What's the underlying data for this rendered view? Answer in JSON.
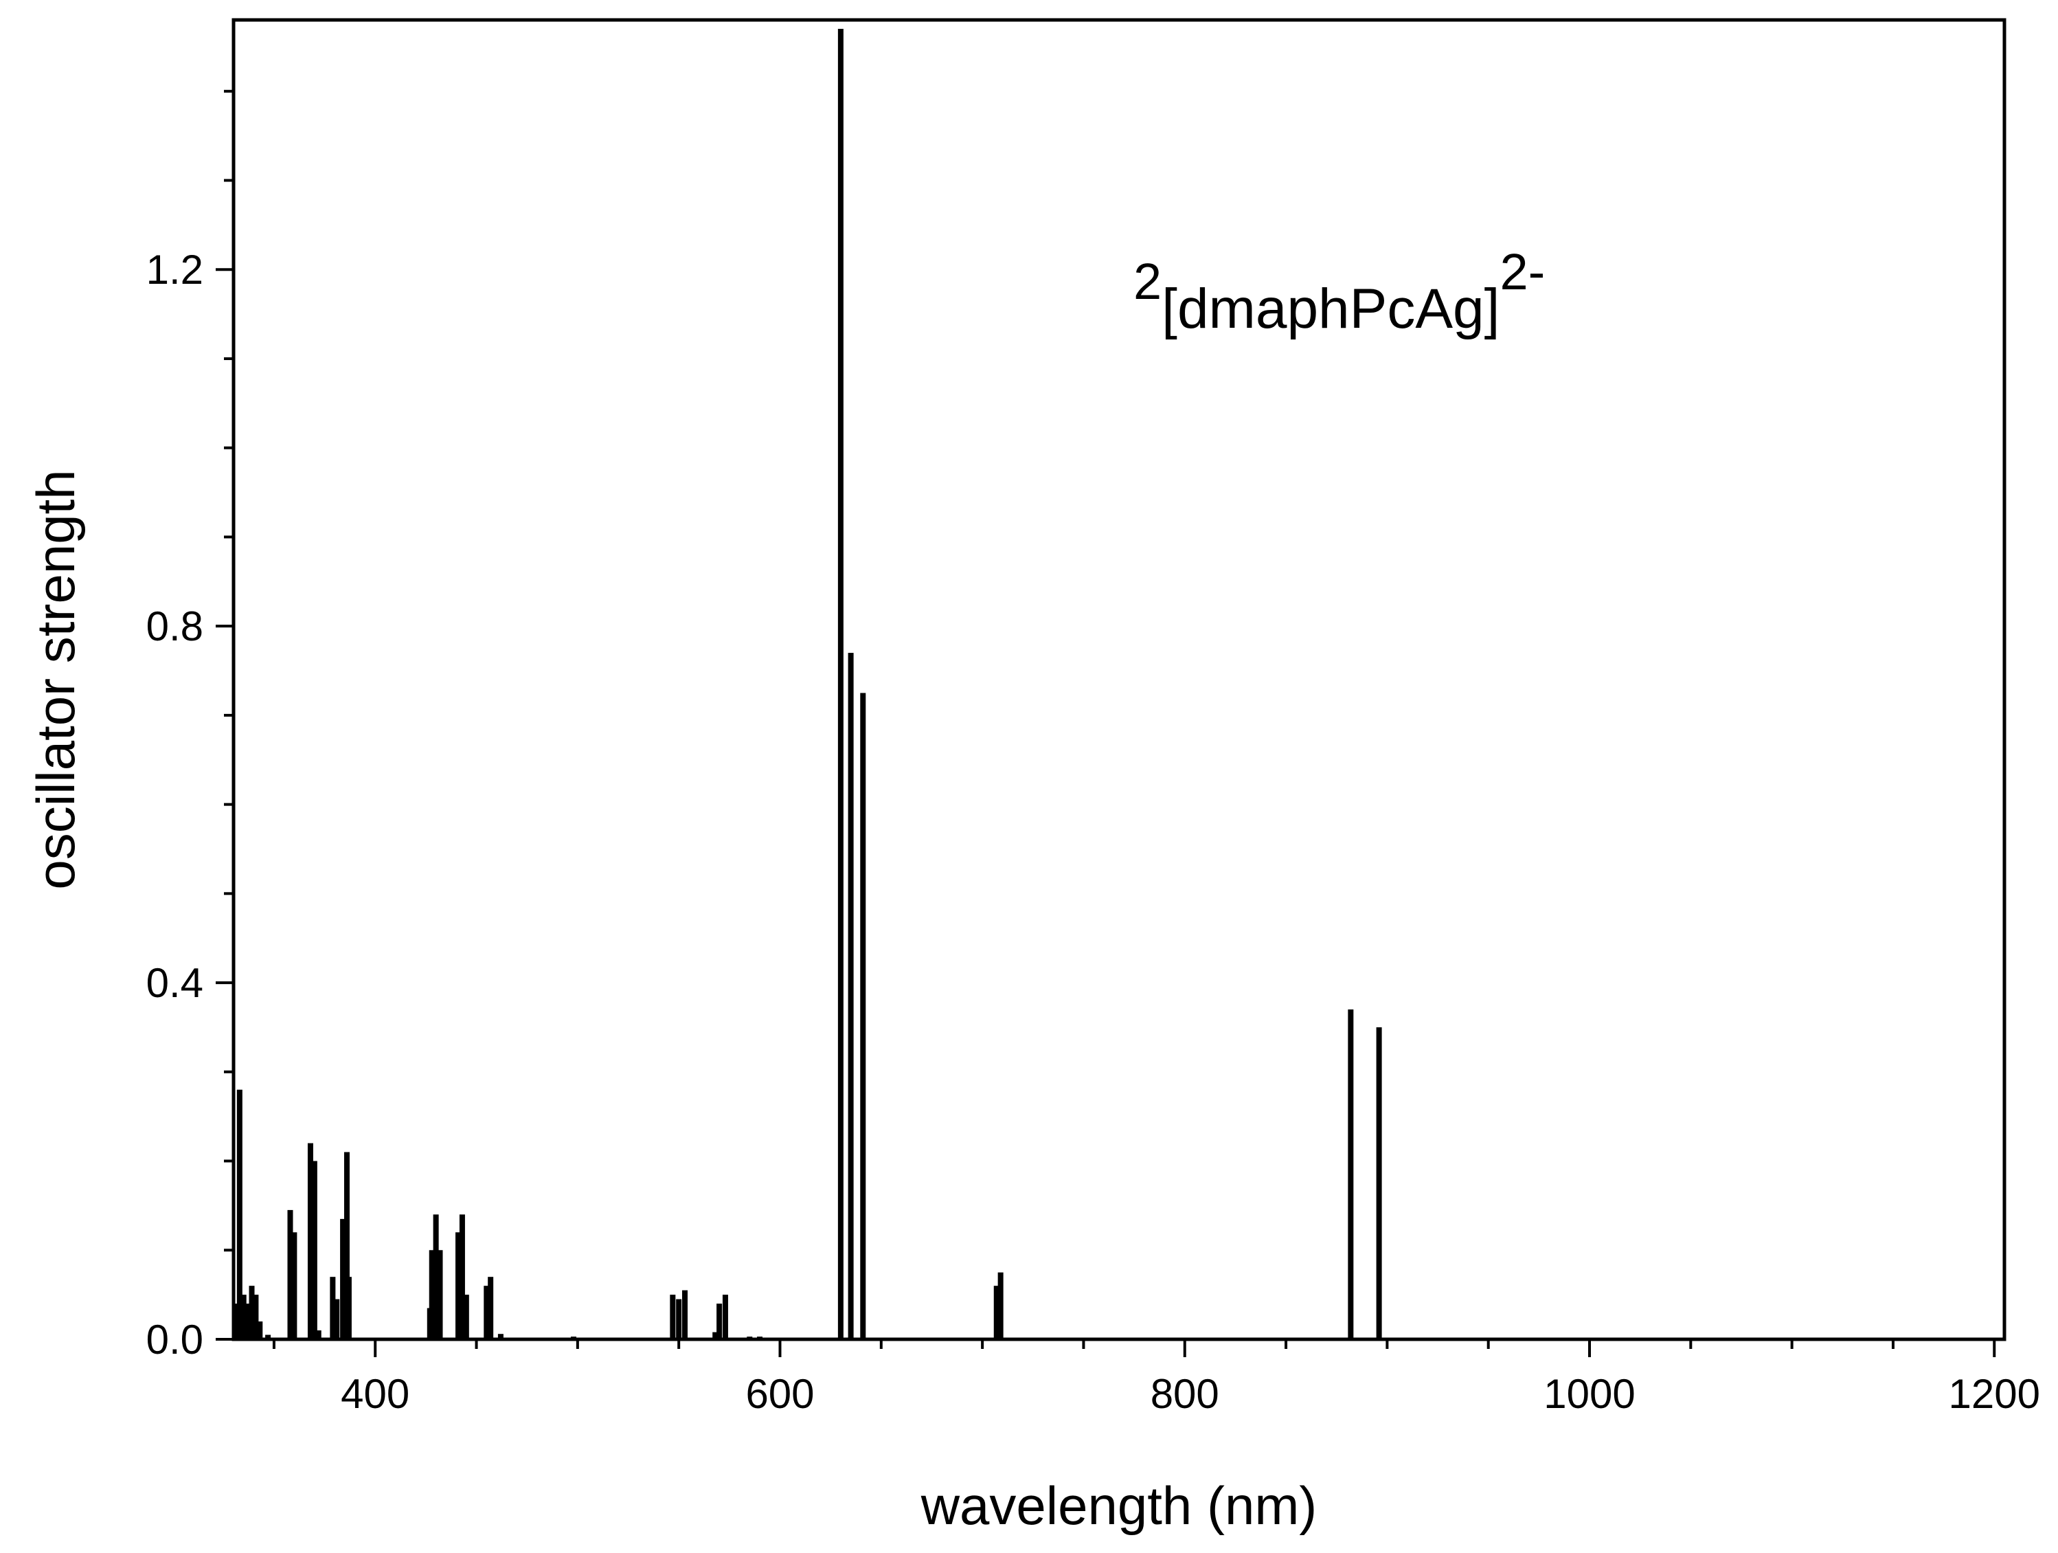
{
  "chart_data": {
    "type": "bar",
    "title": "",
    "xlabel": "wavelength (nm)",
    "ylabel": "oscillator strength",
    "xlim": [
      330,
      1205
    ],
    "ylim": [
      0,
      1.48
    ],
    "x_ticks": [
      400,
      600,
      800,
      1000,
      1200
    ],
    "x_tick_labels": [
      "400",
      "600",
      "800",
      "1000",
      "1200"
    ],
    "y_ticks": [
      0.0,
      0.4,
      0.8,
      1.2
    ],
    "y_tick_labels": [
      "0.0",
      "0.4",
      "0.8",
      "1.2"
    ],
    "grid": false,
    "bar_color": "#000000",
    "annotation": {
      "prefix_superscript": "2",
      "text": "[dmaphPcAg]",
      "suffix_superscript": "2-"
    },
    "x": [
      331,
      333,
      335,
      337,
      339,
      341,
      343,
      347,
      358,
      360,
      368,
      370,
      372,
      379,
      381,
      384,
      386,
      387,
      427,
      428,
      429,
      430,
      432,
      441,
      443,
      445,
      455,
      457,
      462,
      498,
      547,
      550,
      553,
      568,
      570,
      573,
      585,
      590,
      630,
      635,
      641,
      707,
      709,
      882,
      896
    ],
    "values": [
      0.04,
      0.28,
      0.05,
      0.04,
      0.06,
      0.05,
      0.02,
      0.005,
      0.145,
      0.12,
      0.22,
      0.2,
      0.01,
      0.07,
      0.045,
      0.135,
      0.21,
      0.07,
      0.035,
      0.1,
      0.09,
      0.14,
      0.1,
      0.12,
      0.14,
      0.05,
      0.06,
      0.07,
      0.006,
      0.003,
      0.05,
      0.045,
      0.055,
      0.008,
      0.04,
      0.05,
      0.003,
      0.003,
      1.47,
      0.77,
      0.725,
      0.06,
      0.075,
      0.37,
      0.35
    ]
  }
}
